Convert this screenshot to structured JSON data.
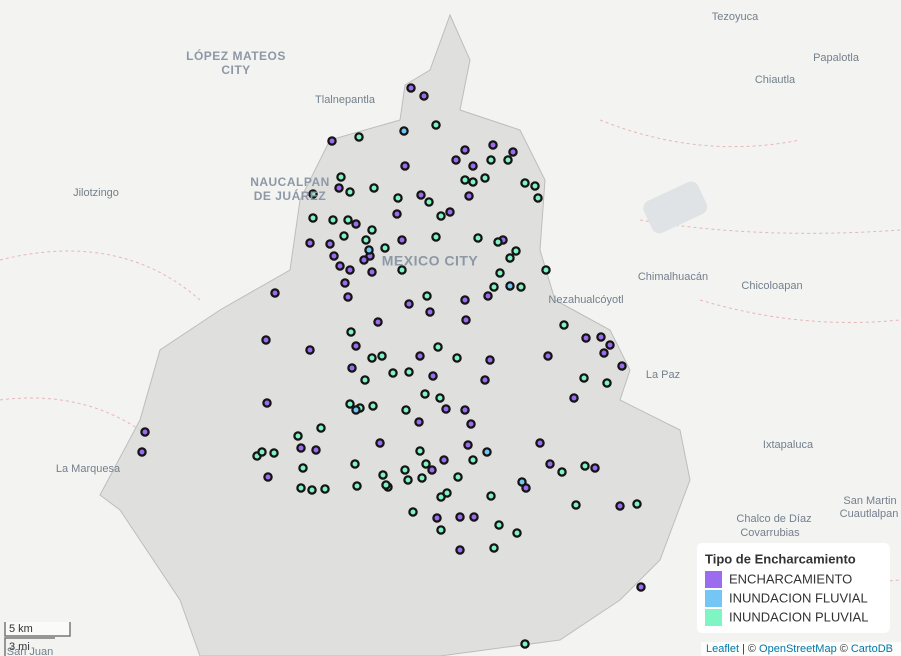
{
  "map": {
    "place_labels": [
      "Tezoyuca",
      "Papalotla",
      "LÓPEZ MATEOS",
      "CITY",
      "Chiautla",
      "Tlalnepantla",
      "Jilotzingo",
      "NAUCALPAN",
      "DE JUÁREZ",
      "MEXICO CITY",
      "Chimalhuacán",
      "Chicoloapan",
      "Nezahualcóyotl",
      "La Paz",
      "Ixtapaluca",
      "La Marquesa",
      "San Martin",
      "Cuautlalpan",
      "Chalco de Díaz",
      "Covarrubias",
      "San Juan"
    ],
    "legend": {
      "title": "Tipo de Encharcamiento",
      "items": [
        {
          "label": "ENCHARCAMIENTO",
          "color": "#9b6cf0"
        },
        {
          "label": "INUNDACION FLUVIAL",
          "color": "#74c6f5"
        },
        {
          "label": "INUNDACION PLUVIAL",
          "color": "#7ff5c4"
        }
      ]
    },
    "scale": [
      "5 km",
      "3 mi"
    ],
    "attribution": [
      "Leaflet",
      "| ©",
      "OpenStreetMap",
      "©",
      "CartoDB"
    ]
  }
}
